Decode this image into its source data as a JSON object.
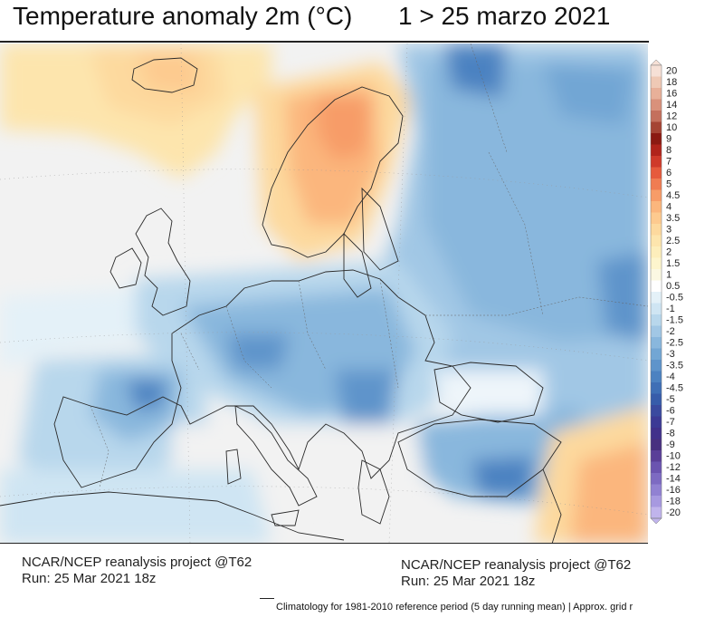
{
  "header": {
    "title": "Temperature anomaly 2m (°C)",
    "period": "1 > 25 marzo  2021"
  },
  "credits": {
    "left_line1": "NCAR/NCEP reanalysis project @T62",
    "left_line2": "Run: 25 Mar 2021 18z",
    "right_line1": "NCAR/NCEP reanalysis project @T62",
    "right_line2": "Run: 25 Mar 2021 18z"
  },
  "footer": {
    "climatology": "Climatology for 1981-2010 reference period (5 day running mean) | Approx. grid r"
  },
  "legend": {
    "labels": [
      "20",
      "18",
      "16",
      "14",
      "12",
      "10",
      "9",
      "8",
      "7",
      "6",
      "5",
      "4.5",
      "4",
      "3.5",
      "3",
      "2.5",
      "2",
      "1.5",
      "1",
      "0.5",
      "-0.5",
      "-1",
      "-1.5",
      "-2",
      "-2.5",
      "-3",
      "-3.5",
      "-4",
      "-4.5",
      "-5",
      "-6",
      "-7",
      "-8",
      "-9",
      "-10",
      "-12",
      "-14",
      "-16",
      "-18",
      "-20"
    ],
    "colors": [
      "#f6e0d6",
      "#efc9b5",
      "#e8b099",
      "#d9917b",
      "#c4705d",
      "#a54434",
      "#8b1a12",
      "#b0241b",
      "#cf3a2a",
      "#e65a3c",
      "#f07c52",
      "#f79c68",
      "#fbb67d",
      "#fdca8f",
      "#fdd99e",
      "#fde5ad",
      "#fdeebb",
      "#fdf5cd",
      "#fbf8e2",
      "#ffffff",
      "#e4f1f8",
      "#cfe5f3",
      "#b8d7ec",
      "#a1c7e5",
      "#89b7dd",
      "#72a6d4",
      "#5e94cb",
      "#4c82c1",
      "#3f6fb6",
      "#375caa",
      "#3a4a9f",
      "#3c3a95",
      "#41318b",
      "#483080",
      "#5a3f98",
      "#6b54b0",
      "#7d6ac2",
      "#9181d2",
      "#a799e0",
      "#c0b4ec"
    ]
  },
  "map": {
    "projection": "polar stereographic (Europe)",
    "region_notes": [
      "Scandinavia: +3 to +4 °C",
      "Central & Eastern Europe: -1 to -4 °C",
      "Eastern Mediterranean / Middle East: +2 to +3 °C"
    ]
  }
}
